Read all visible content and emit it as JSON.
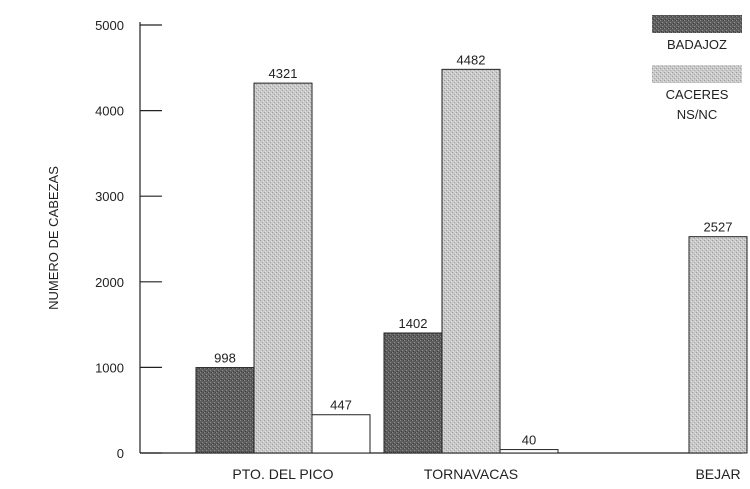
{
  "chart_data": {
    "type": "bar",
    "title": "",
    "xlabel": "",
    "ylabel": "NUMERO DE CABEZAS",
    "ylim": [
      0,
      5000
    ],
    "yticks": [
      0,
      1000,
      2000,
      3000,
      4000,
      5000
    ],
    "grid": false,
    "legend_position": "top-right",
    "categories": [
      "PTO. DEL PICO",
      "TORNAVACAS",
      "BEJAR"
    ],
    "series": [
      {
        "name": "BADAJOZ",
        "values": [
          998,
          1402,
          null
        ],
        "labels": [
          "998",
          "1402",
          ""
        ],
        "color": "#6e6e6e"
      },
      {
        "name": "CACERES",
        "values": [
          4321,
          4482,
          2527
        ],
        "labels": [
          "4321",
          "4482",
          "2527"
        ],
        "color": "#c8c8c8"
      },
      {
        "name": "NS/NC",
        "values": [
          447,
          40,
          null
        ],
        "labels": [
          "447",
          "40",
          ""
        ],
        "color": "#ffffff"
      }
    ]
  }
}
